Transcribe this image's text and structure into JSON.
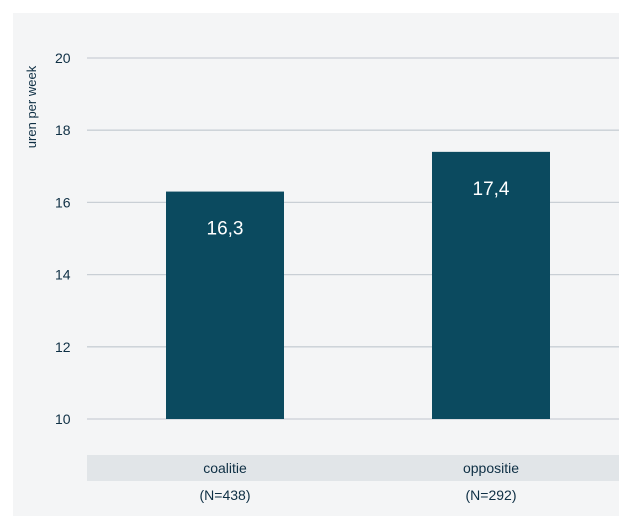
{
  "chart_data": {
    "type": "bar",
    "categories": [
      "coalitie",
      "oppositie"
    ],
    "category_sublabels": [
      "(N=438)",
      "(N=292)"
    ],
    "values": [
      16.3,
      17.4
    ],
    "value_labels": [
      "16,3",
      "17,4"
    ],
    "ylabel": "uren per week",
    "xlabel": "",
    "ylim": [
      10,
      20
    ],
    "yticks": [
      10,
      12,
      14,
      16,
      18,
      20
    ],
    "grid": true,
    "colors": {
      "bar": "#0b4a5f",
      "grid": "#c9cfd5",
      "category_band": "#e1e5e8",
      "background": "#f4f5f6",
      "text": "#0e2f44"
    }
  }
}
